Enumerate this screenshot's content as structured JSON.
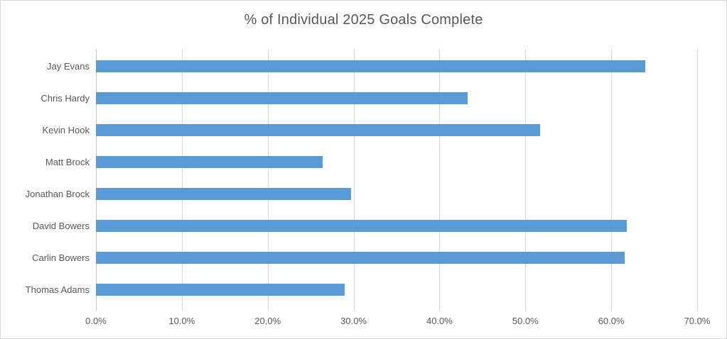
{
  "chart_data": {
    "type": "bar",
    "orientation": "horizontal",
    "title": "% of Individual 2025 Goals Complete",
    "categories": [
      "Jay Evans",
      "Chris Hardy",
      "Kevin Hook",
      "Matt Brock",
      "Jonathan Brock",
      "David Bowers",
      "Carlin Bowers",
      "Thomas Adams"
    ],
    "values": [
      64.0,
      43.3,
      51.7,
      26.4,
      29.7,
      61.8,
      61.6,
      29.0
    ],
    "xlabel": "",
    "ylabel": "",
    "xlim": [
      0,
      70
    ],
    "x_ticks": [
      0,
      10,
      20,
      30,
      40,
      50,
      60,
      70
    ],
    "x_tick_labels": [
      "0.0%",
      "10.0%",
      "20.0%",
      "30.0%",
      "40.0%",
      "50.0%",
      "60.0%",
      "70.0%"
    ],
    "grid": true,
    "legend": false,
    "colors": {
      "bar": "#5B9BD5",
      "gridline": "#D9D9D9",
      "axis_line": "#C6C6C6",
      "text": "#595959",
      "border": "#D7D7D7"
    }
  }
}
